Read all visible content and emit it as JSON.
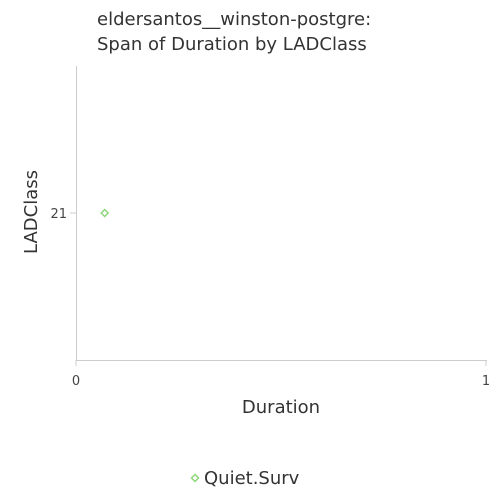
{
  "chart_data": {
    "type": "scatter",
    "title_lines": [
      "eldersantos__winston-postgre:",
      "Span of Duration by LADClass"
    ],
    "xlabel": "Duration",
    "ylabel": "LADClass",
    "xlim": [
      0,
      1
    ],
    "x_ticks": [
      "0",
      "1"
    ],
    "y_categories": [
      "21"
    ],
    "grid": false,
    "legend_position": "bottom",
    "series": [
      {
        "name": "Quiet.Surv",
        "color": "#8fd67a",
        "marker": "diamond-open",
        "points": [
          {
            "x": 0.07,
            "y": "21"
          }
        ]
      }
    ]
  }
}
